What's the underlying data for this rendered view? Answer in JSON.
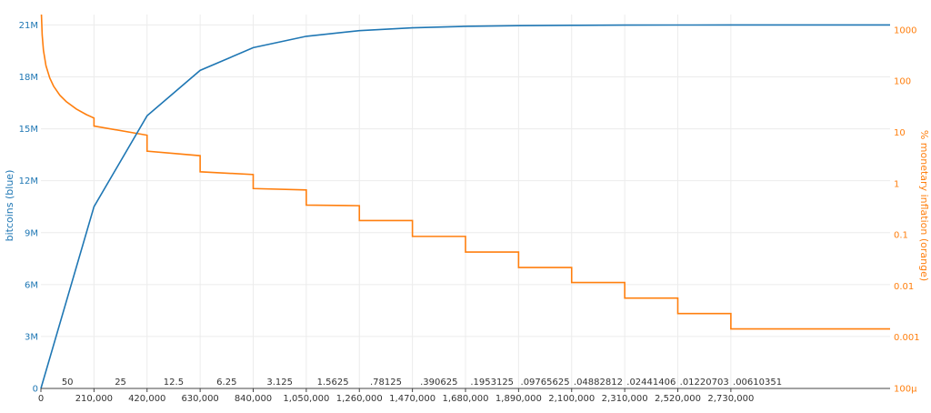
{
  "colors": {
    "blue": "#1f77b4",
    "orange": "#ff7f0e",
    "grid": "#ececec",
    "axis": "#444444"
  },
  "chart_data": {
    "type": "line",
    "title": "",
    "xlabel": "",
    "ylabel_left": "bitcoins (blue)",
    "ylabel_right": "% monetary inflation (orange)",
    "grid": true,
    "legend": "none",
    "xlim": [
      0,
      3360000
    ],
    "ylim_left": [
      0,
      21600000
    ],
    "ylim_right_log10": [
      -4,
      3.3
    ],
    "right_scale": "log",
    "x_ticks": [
      {
        "value": 0,
        "label": "0"
      },
      {
        "value": 210000,
        "label": "210,000"
      },
      {
        "value": 420000,
        "label": "420,000"
      },
      {
        "value": 630000,
        "label": "630,000"
      },
      {
        "value": 840000,
        "label": "840,000"
      },
      {
        "value": 1050000,
        "label": "1,050,000"
      },
      {
        "value": 1260000,
        "label": "1,260,000"
      },
      {
        "value": 1470000,
        "label": "1,470,000"
      },
      {
        "value": 1680000,
        "label": "1,680,000"
      },
      {
        "value": 1890000,
        "label": "1,890,000"
      },
      {
        "value": 2100000,
        "label": "2,100,000"
      },
      {
        "value": 2310000,
        "label": "2,310,000"
      },
      {
        "value": 2520000,
        "label": "2,520,000"
      },
      {
        "value": 2730000,
        "label": "2,730,000"
      }
    ],
    "left_ticks": [
      {
        "value": 0,
        "label": "0"
      },
      {
        "value": 3000000,
        "label": "3M"
      },
      {
        "value": 6000000,
        "label": "6M"
      },
      {
        "value": 9000000,
        "label": "9M"
      },
      {
        "value": 12000000,
        "label": "12M"
      },
      {
        "value": 15000000,
        "label": "15M"
      },
      {
        "value": 18000000,
        "label": "18M"
      },
      {
        "value": 21000000,
        "label": "21M"
      }
    ],
    "right_ticks": [
      {
        "value": 0.0001,
        "label": "100μ"
      },
      {
        "value": 0.001,
        "label": "0.001"
      },
      {
        "value": 0.01,
        "label": "0.01"
      },
      {
        "value": 0.1,
        "label": "0.1"
      },
      {
        "value": 1,
        "label": "1"
      },
      {
        "value": 10,
        "label": "10"
      },
      {
        "value": 100,
        "label": "100"
      },
      {
        "value": 1000,
        "label": "1000"
      }
    ],
    "reward_labels": [
      {
        "x": 105000,
        "label": "50"
      },
      {
        "x": 315000,
        "label": "25"
      },
      {
        "x": 525000,
        "label": "12.5"
      },
      {
        "x": 735000,
        "label": "6.25"
      },
      {
        "x": 945000,
        "label": "3.125"
      },
      {
        "x": 1155000,
        "label": "1.5625"
      },
      {
        "x": 1365000,
        "label": ".78125"
      },
      {
        "x": 1575000,
        "label": ".390625"
      },
      {
        "x": 1785000,
        "label": ".1953125"
      },
      {
        "x": 1995000,
        "label": ".09765625"
      },
      {
        "x": 2205000,
        "label": ".04882812"
      },
      {
        "x": 2415000,
        "label": ".02441406"
      },
      {
        "x": 2625000,
        "label": ".01220703"
      },
      {
        "x": 2835000,
        "label": ".00610351"
      }
    ],
    "series": [
      {
        "name": "bitcoins",
        "axis": "left",
        "points": [
          [
            0,
            0
          ],
          [
            210000,
            10500000
          ],
          [
            420000,
            15750000
          ],
          [
            630000,
            18375000
          ],
          [
            840000,
            19687500
          ],
          [
            1050000,
            20343750
          ],
          [
            1260000,
            20671875
          ],
          [
            1470000,
            20835938
          ],
          [
            1680000,
            20917969
          ],
          [
            1890000,
            20958984
          ],
          [
            2100000,
            20979492
          ],
          [
            2310000,
            20989746
          ],
          [
            2520000,
            20994873
          ],
          [
            2730000,
            20997437
          ],
          [
            2940000,
            20998718
          ],
          [
            3150000,
            20999359
          ],
          [
            3360000,
            20999680
          ]
        ]
      },
      {
        "name": "inflation",
        "axis": "right",
        "decay_segment": [
          [
            2000,
            2000
          ],
          [
            5000,
            800
          ],
          [
            10000,
            400
          ],
          [
            20000,
            200
          ],
          [
            35000,
            115
          ],
          [
            50000,
            80
          ],
          [
            75000,
            53
          ],
          [
            100000,
            40
          ],
          [
            140000,
            28.6
          ],
          [
            180000,
            22.2
          ],
          [
            210000,
            19
          ]
        ],
        "steps": [
          [
            210000,
            13.3
          ],
          [
            420000,
            8.8
          ],
          [
            420000,
            4.3
          ],
          [
            630000,
            3.5
          ],
          [
            630000,
            1.7
          ],
          [
            840000,
            1.5
          ],
          [
            840000,
            0.8
          ],
          [
            1050000,
            0.75
          ],
          [
            1050000,
            0.38
          ],
          [
            1260000,
            0.37
          ],
          [
            1260000,
            0.19
          ],
          [
            1470000,
            0.19
          ],
          [
            1470000,
            0.093
          ],
          [
            1680000,
            0.093
          ],
          [
            1680000,
            0.046
          ],
          [
            1890000,
            0.046
          ],
          [
            1890000,
            0.023
          ],
          [
            2100000,
            0.023
          ],
          [
            2100000,
            0.0117
          ],
          [
            2310000,
            0.0117
          ],
          [
            2310000,
            0.0058
          ],
          [
            2520000,
            0.0058
          ],
          [
            2520000,
            0.0029
          ],
          [
            2730000,
            0.0029
          ],
          [
            2730000,
            0.00145
          ],
          [
            3360000,
            0.00145
          ]
        ]
      }
    ]
  }
}
